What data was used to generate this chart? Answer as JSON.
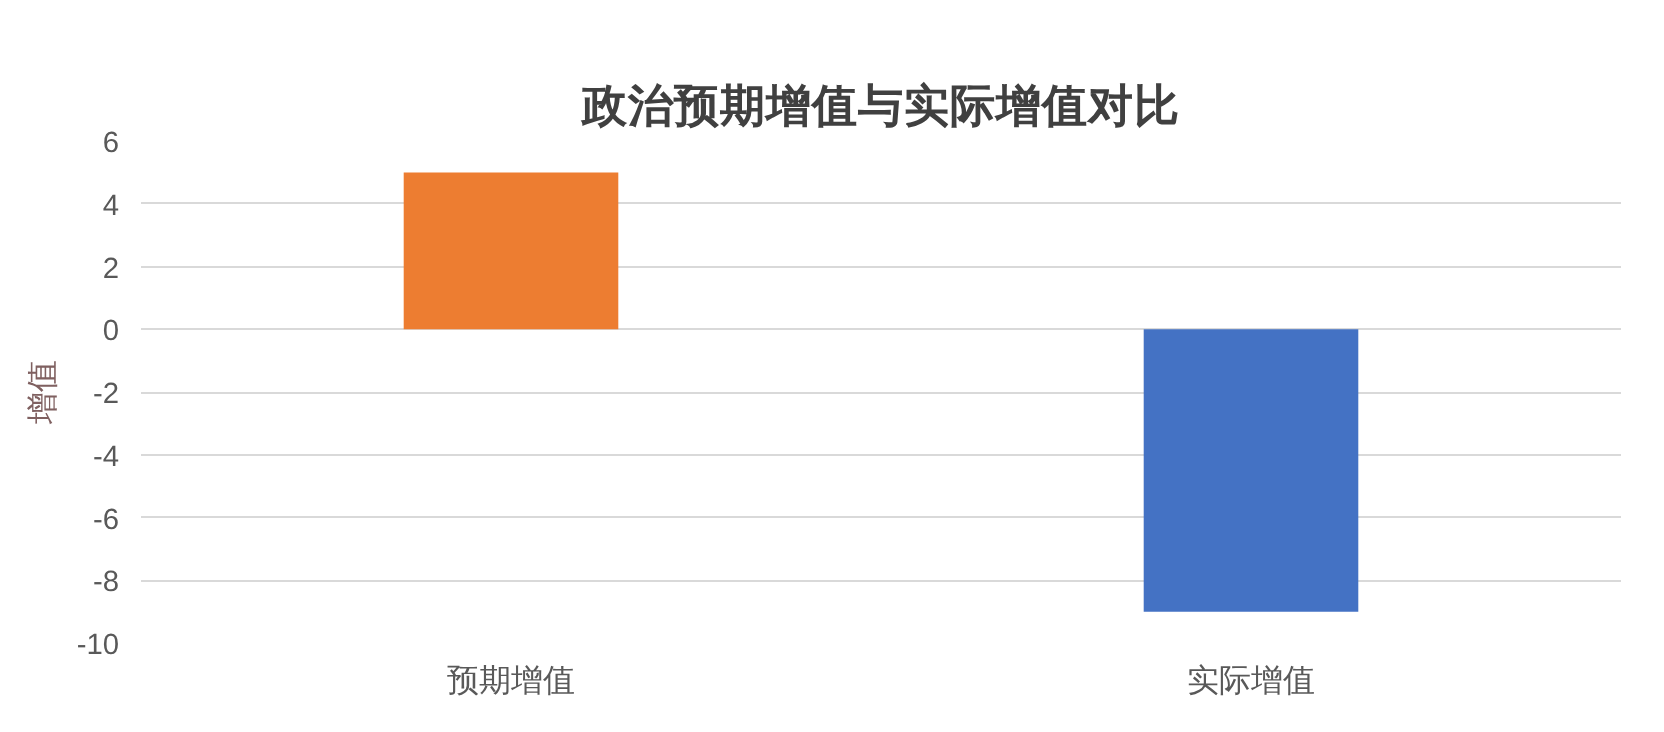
{
  "chart_data": {
    "type": "bar",
    "title": "政治预期增值与实际增值对比",
    "ylabel": "增值",
    "categories": [
      "预期增值",
      "实际增值"
    ],
    "values": [
      5,
      -9
    ],
    "colors": [
      "#ed7d31",
      "#4472c4"
    ],
    "ylim": [
      -10,
      6
    ],
    "yticks": [
      -10,
      -8,
      -6,
      -4,
      -2,
      0,
      2,
      4,
      6
    ],
    "grid": "y"
  }
}
